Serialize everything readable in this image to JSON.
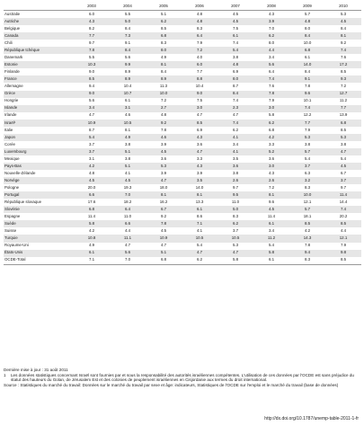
{
  "table": {
    "years": [
      "2003",
      "2004",
      "2005",
      "2006",
      "2007",
      "2008",
      "2009",
      "2010"
    ],
    "rows": [
      {
        "country": "Australie",
        "values": [
          "6.0",
          "5.5",
          "5.1",
          "4.8",
          "4.5",
          "4.3",
          "5.7",
          "5.3"
        ]
      },
      {
        "country": "Autriche",
        "values": [
          "4.3",
          "5.0",
          "6.2",
          "4.8",
          "4.5",
          "3.9",
          "4.8",
          "4.5"
        ]
      },
      {
        "country": "Belgique",
        "values": [
          "8.2",
          "8.4",
          "8.5",
          "8.3",
          "7.5",
          "7.0",
          "8.0",
          "8.4"
        ]
      },
      {
        "country": "Canada",
        "values": [
          "7.7",
          "7.3",
          "6.8",
          "6.4",
          "6.1",
          "6.2",
          "8.4",
          "8.1"
        ]
      },
      {
        "country": "Chili",
        "values": [
          "9.7",
          "9.1",
          "8.3",
          "7.9",
          "7.4",
          "8.0",
          "10.0",
          "9.2"
        ]
      },
      {
        "country": "République tchèque",
        "values": [
          "7.8",
          "8.4",
          "8.0",
          "7.2",
          "5.4",
          "4.4",
          "6.8",
          "7.4"
        ]
      },
      {
        "country": "Danemark",
        "values": [
          "5.5",
          "5.6",
          "4.9",
          "4.0",
          "3.8",
          "3.4",
          "6.1",
          "7.6"
        ]
      },
      {
        "country": "Estonie",
        "values": [
          "10.3",
          "9.9",
          "8.1",
          "6.0",
          "4.8",
          "5.6",
          "14.0",
          "17.2"
        ]
      },
      {
        "country": "Finlande",
        "values": [
          "9.0",
          "8.9",
          "8.4",
          "7.7",
          "6.9",
          "6.4",
          "8.4",
          "8.5"
        ]
      },
      {
        "country": "France",
        "values": [
          "8.5",
          "8.9",
          "8.9",
          "8.8",
          "8.0",
          "7.4",
          "9.1",
          "9.3"
        ]
      },
      {
        "country": "Allemagne",
        "values": [
          "9.4",
          "10.4",
          "11.3",
          "10.4",
          "8.7",
          "7.6",
          "7.8",
          "7.2"
        ]
      },
      {
        "country": "Grèce",
        "values": [
          "9.0",
          "10.7",
          "10.0",
          "9.0",
          "8.4",
          "7.8",
          "9.6",
          "12.7"
        ]
      },
      {
        "country": "Hongrie",
        "values": [
          "5.6",
          "6.1",
          "7.2",
          "7.5",
          "7.4",
          "7.9",
          "10.1",
          "11.2"
        ]
      },
      {
        "country": "Islande",
        "values": [
          "3.4",
          "3.1",
          "2.7",
          "3.0",
          "2.3",
          "3.0",
          "7.4",
          "7.7"
        ]
      },
      {
        "country": "Irlande",
        "values": [
          "4.7",
          "4.6",
          "4.8",
          "4.7",
          "4.7",
          "5.8",
          "12.2",
          "13.9"
        ]
      },
      {
        "country": "Israël¹",
        "values": [
          "10.9",
          "10.5",
          "9.2",
          "8.5",
          "7.4",
          "6.2",
          "7.7",
          "6.8"
        ]
      },
      {
        "country": "Italie",
        "values": [
          "8.7",
          "8.1",
          "7.8",
          "6.9",
          "6.2",
          "6.8",
          "7.9",
          "8.5"
        ]
      },
      {
        "country": "Japon",
        "values": [
          "5.4",
          "4.9",
          "4.6",
          "4.3",
          "4.1",
          "4.2",
          "5.3",
          "5.3"
        ]
      },
      {
        "country": "Corée",
        "values": [
          "3.7",
          "3.8",
          "3.9",
          "3.6",
          "3.4",
          "3.3",
          "3.8",
          "3.8"
        ]
      },
      {
        "country": "Luxembourg",
        "values": [
          "3.7",
          "5.1",
          "4.5",
          "4.7",
          "4.1",
          "5.2",
          "5.7",
          "4.7"
        ]
      },
      {
        "country": "Mexique",
        "values": [
          "3.1",
          "3.8",
          "3.6",
          "3.3",
          "3.5",
          "3.6",
          "5.4",
          "5.4"
        ]
      },
      {
        "country": "Pays-Bas",
        "values": [
          "4.2",
          "5.1",
          "5.3",
          "4.3",
          "3.6",
          "3.0",
          "3.7",
          "4.5"
        ]
      },
      {
        "country": "Nouvelle-Zélande",
        "values": [
          "4.8",
          "4.1",
          "3.9",
          "3.9",
          "3.8",
          "4.3",
          "6.3",
          "6.7"
        ]
      },
      {
        "country": "Norvège",
        "values": [
          "4.5",
          "4.5",
          "4.7",
          "3.5",
          "2.6",
          "2.6",
          "3.2",
          "3.7"
        ]
      },
      {
        "country": "Pologne",
        "values": [
          "20.0",
          "19.3",
          "18.0",
          "14.0",
          "9.7",
          "7.2",
          "8.3",
          "9.7"
        ]
      },
      {
        "country": "Portugal",
        "values": [
          "6.6",
          "7.0",
          "8.1",
          "8.1",
          "9.5",
          "8.1",
          "10.0",
          "11.4"
        ]
      },
      {
        "country": "République slovaque",
        "values": [
          "17.6",
          "18.2",
          "16.2",
          "13.3",
          "11.0",
          "9.6",
          "12.1",
          "14.4"
        ]
      },
      {
        "country": "Slovénie",
        "values": [
          "6.8",
          "6.4",
          "6.7",
          "6.1",
          "5.0",
          "4.5",
          "5.7",
          "7.4"
        ]
      },
      {
        "country": "Espagne",
        "values": [
          "11.4",
          "11.0",
          "9.2",
          "8.6",
          "8.3",
          "11.4",
          "18.1",
          "20.2"
        ]
      },
      {
        "country": "Suède",
        "values": [
          "5.8",
          "6.6",
          "7.8",
          "7.1",
          "6.2",
          "6.1",
          "8.5",
          "8.5"
        ]
      },
      {
        "country": "Suisse",
        "values": [
          "4.2",
          "4.4",
          "4.5",
          "4.1",
          "3.7",
          "3.4",
          "4.2",
          "4.4"
        ]
      },
      {
        "country": "Turquie",
        "values": [
          "10.8",
          "11.1",
          "10.9",
          "10.5",
          "10.5",
          "11.2",
          "14.3",
          "12.1"
        ]
      },
      {
        "country": "Royaume-Uni",
        "values": [
          "4.9",
          "4.7",
          "4.7",
          "5.4",
          "5.3",
          "5.4",
          "7.8",
          "7.9"
        ]
      },
      {
        "country": "États-Unis",
        "values": [
          "6.1",
          "5.6",
          "5.1",
          "4.7",
          "4.7",
          "5.8",
          "9.4",
          "9.8"
        ]
      },
      {
        "country": "OCDE-Total",
        "values": [
          "7.1",
          "7.0",
          "6.8",
          "6.2",
          "5.8",
          "6.1",
          "8.3",
          "8.5"
        ]
      }
    ]
  },
  "notes": {
    "last_update": "Dernière mise à jour : 31 août 2011",
    "footnote_num": "1",
    "footnote": "Les données statistiques concernant Israël sont fournies par et sous la responsabilité des autorités israéliennes compétentes. L'utilisation de ces données par l'OCDE est sans préjudice du statut des hauteurs du Golan, de Jérusalem Est et des colonies de peuplement israéliennes en Cisjordanie aux termes du droit international.",
    "source": "Source : Statistiques du marché du travail: Données sur le marché du travail par sexe et âge: indicateurs, Statistiques de l'OCDE sur l'emploi et le marché du travail (base de données)",
    "doi": "http://dx.doi.org/10.1787/unemp-table-2011-1-fr"
  }
}
